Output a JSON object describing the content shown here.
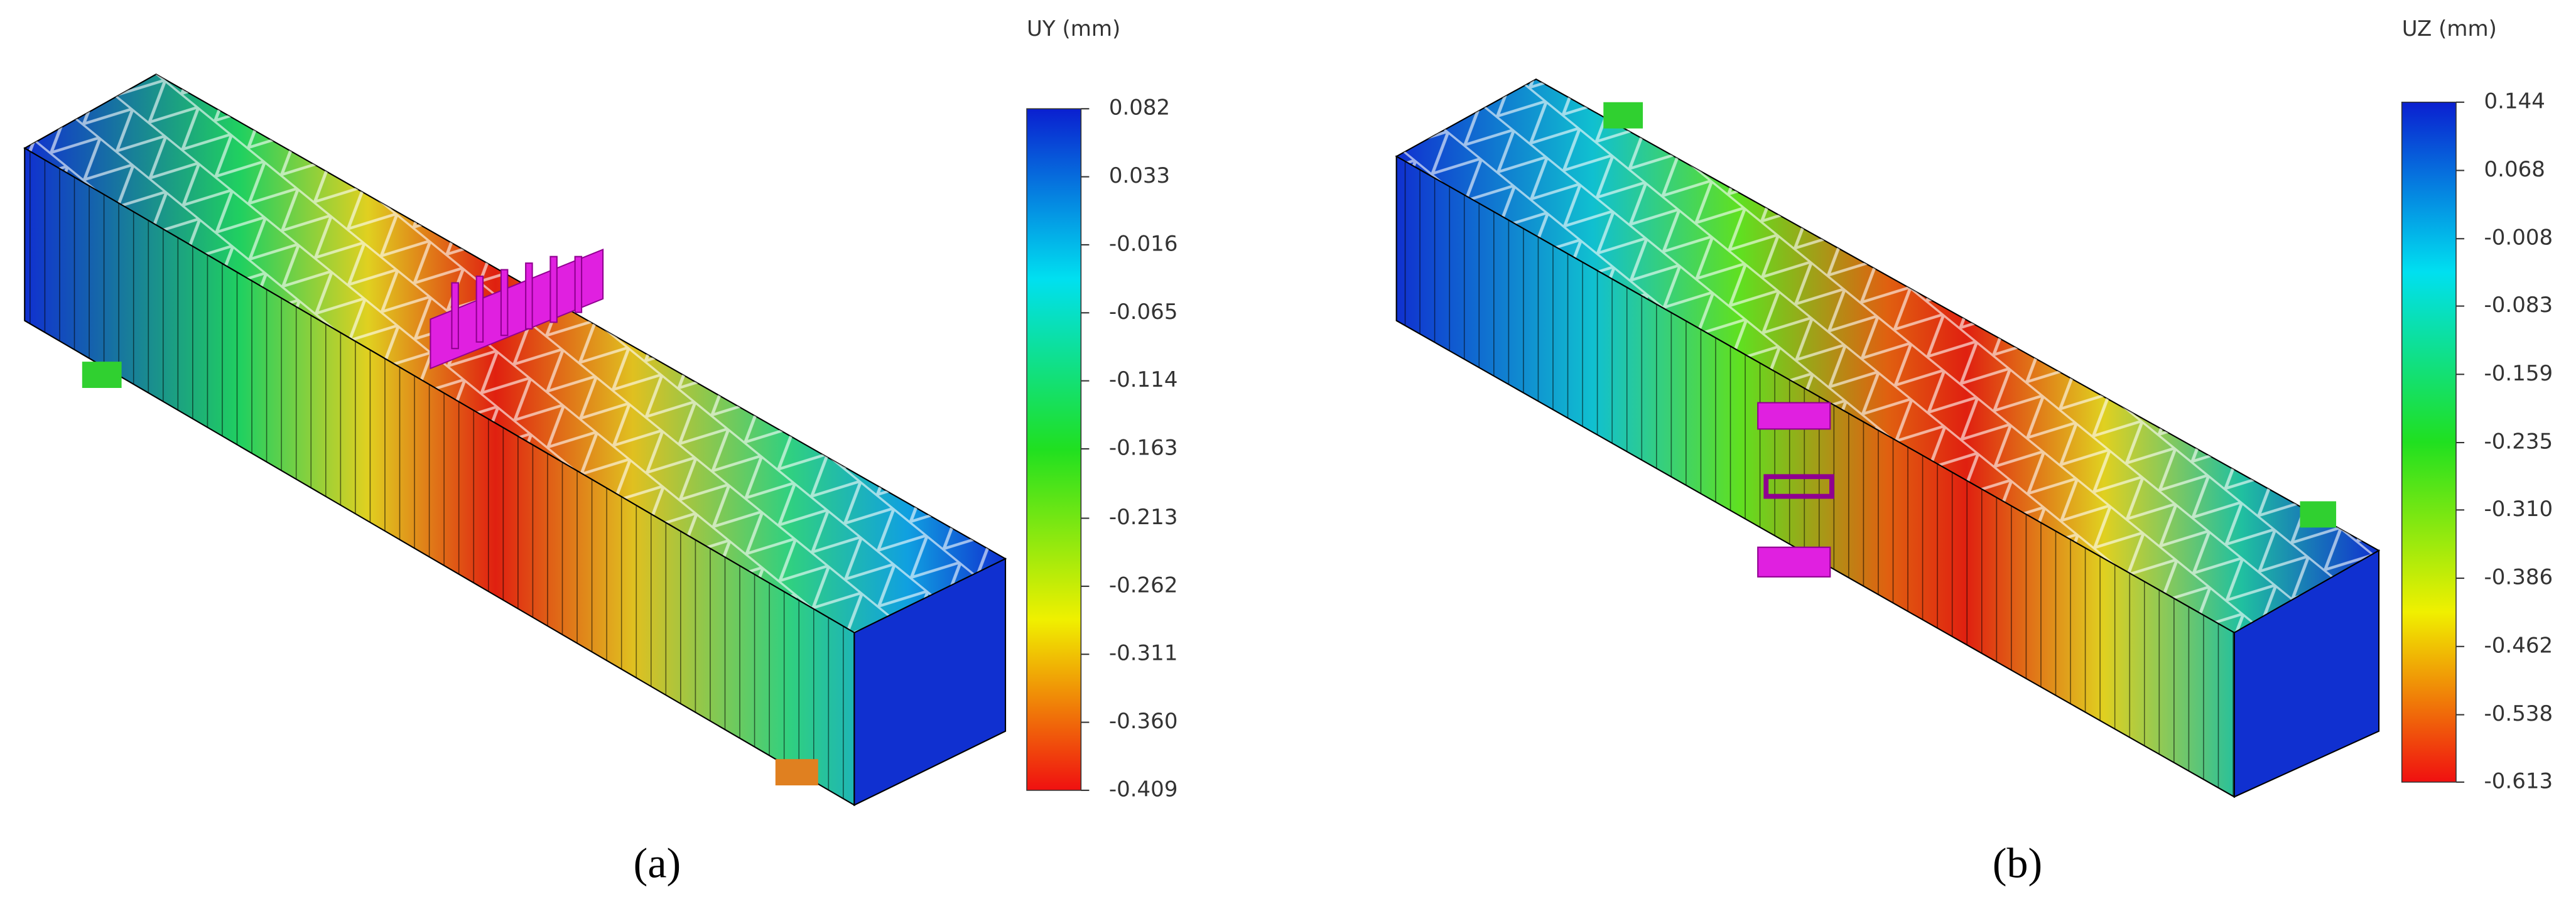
{
  "panels": [
    {
      "colorbar": {
        "title": "UY (mm)",
        "ticks": [
          0.082,
          0.033,
          -0.016,
          -0.065,
          -0.114,
          -0.163,
          -0.213,
          -0.262,
          -0.311,
          {
            "value": -0.36,
            "label": "-0.360"
          },
          -0.409
        ]
      },
      "caption": "(a)"
    },
    {
      "colorbar": {
        "title": "UZ (mm)",
        "ticks": [
          0.144,
          0.068,
          -0.008,
          -0.083,
          -0.159,
          -0.235,
          {
            "value": -0.31,
            "label": "-0.310"
          },
          -0.386,
          -0.462,
          -0.538,
          -0.613
        ]
      },
      "caption": "(b)"
    }
  ]
}
